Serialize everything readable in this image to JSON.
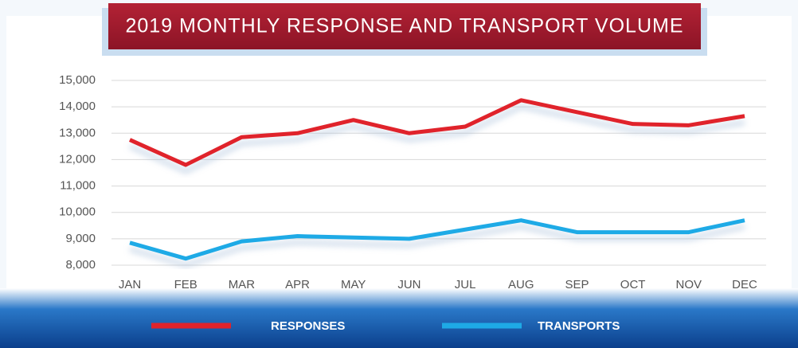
{
  "chart_data": {
    "type": "line",
    "title": "2019 MONTHLY RESPONSE AND TRANSPORT VOLUME",
    "categories": [
      "JAN",
      "FEB",
      "MAR",
      "APR",
      "MAY",
      "JUN",
      "JUL",
      "AUG",
      "SEP",
      "OCT",
      "NOV",
      "DEC"
    ],
    "series": [
      {
        "name": "RESPONSES",
        "color": "#e0232b",
        "values": [
          12750,
          11800,
          12850,
          13000,
          13500,
          13000,
          13250,
          14250,
          13800,
          13350,
          13300,
          13650
        ]
      },
      {
        "name": "TRANSPORTS",
        "color": "#1eaae6",
        "values": [
          8850,
          8250,
          8900,
          9100,
          9050,
          9000,
          9350,
          9700,
          9250,
          9250,
          9250,
          9700
        ]
      }
    ],
    "ylim": [
      8000,
      15000
    ],
    "yticks": [
      {
        "value": 8000,
        "label": "8,000"
      },
      {
        "value": 9000,
        "label": "9,000"
      },
      {
        "value": 10000,
        "label": "10,000"
      },
      {
        "value": 11000,
        "label": "11,000"
      },
      {
        "value": 12000,
        "label": "12,000"
      },
      {
        "value": 13000,
        "label": "13,000"
      },
      {
        "value": 14000,
        "label": "14,000"
      },
      {
        "value": 15000,
        "label": "15,000"
      }
    ],
    "grid": true,
    "legend": "bottom"
  }
}
